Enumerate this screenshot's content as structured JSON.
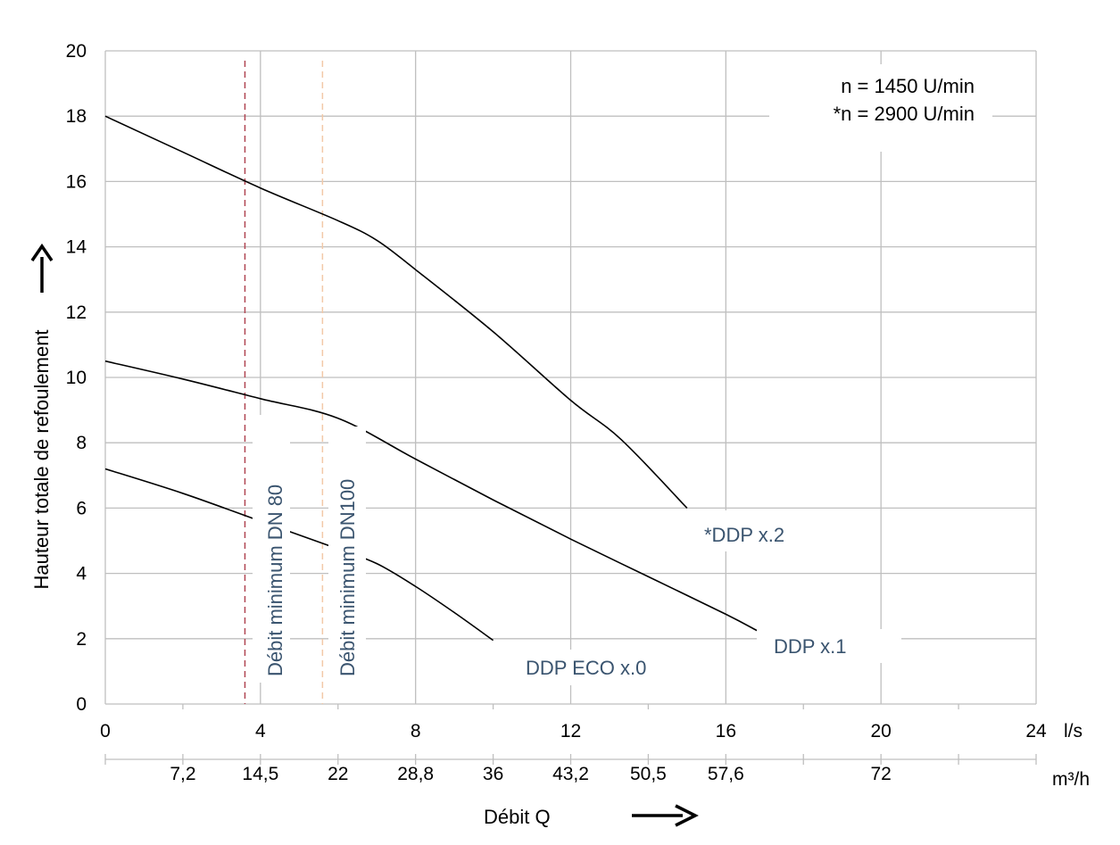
{
  "chart_data": {
    "type": "line",
    "title": "",
    "xlabel": "Débit Q",
    "ylabel": "Hauteur totale de refoulement",
    "xunit_primary": "l/s",
    "xunit_secondary": "m³/h",
    "xlim": [
      0,
      24
    ],
    "ylim": [
      0,
      20
    ],
    "grid": true,
    "x_ticks": [
      "0",
      "4",
      "8",
      "12",
      "16",
      "20",
      "24"
    ],
    "y_ticks": [
      "0",
      "2",
      "4",
      "6",
      "8",
      "10",
      "12",
      "14",
      "16",
      "18",
      "20"
    ],
    "secondary_ticks": [
      {
        "at": 2,
        "label": "7,2"
      },
      {
        "at": 4,
        "label": "14,5"
      },
      {
        "at": 6,
        "label": "22"
      },
      {
        "at": 8,
        "label": "28,8"
      },
      {
        "at": 10,
        "label": "36"
      },
      {
        "at": 12,
        "label": "43,2"
      },
      {
        "at": 14,
        "label": "50,5"
      },
      {
        "at": 16,
        "label": "57,6"
      },
      {
        "at": 20,
        "label": "72"
      }
    ],
    "secondary_minor_ticks": [
      0,
      18,
      22,
      24
    ],
    "annotation_lines": [
      "n = 1450 U/min",
      "*n = 2900 U/min"
    ],
    "reference_lines": [
      {
        "name": "Débit minimum DN 80",
        "x": 3.6,
        "color": "#b04552"
      },
      {
        "name": "Débit minimum DN100",
        "x": 5.6,
        "color": "#f2c9a8"
      }
    ],
    "series": [
      {
        "name": "*DDP x.2",
        "x": [
          0,
          2,
          4,
          6,
          7,
          8,
          10,
          12,
          13.3,
          15
        ],
        "y": [
          18,
          16.9,
          15.8,
          14.8,
          14.2,
          13.3,
          11.4,
          9.3,
          8.1,
          6
        ]
      },
      {
        "name": "DDP x.1",
        "x": [
          0,
          2,
          4,
          6,
          8,
          10,
          12,
          14,
          16,
          16.8
        ],
        "y": [
          10.5,
          9.95,
          9.35,
          8.75,
          7.5,
          6.25,
          5.05,
          3.9,
          2.75,
          2.25
        ]
      },
      {
        "name": "DDP ECO x.0",
        "x": [
          0,
          2,
          4,
          6,
          7,
          8,
          9,
          10
        ],
        "y": [
          7.2,
          6.45,
          5.6,
          4.75,
          4.3,
          3.6,
          2.8,
          1.95
        ]
      }
    ]
  }
}
